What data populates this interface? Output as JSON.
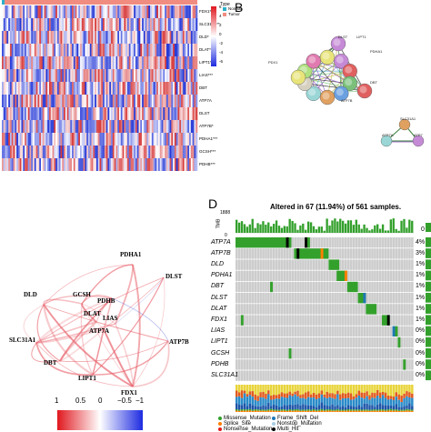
{
  "panelA": {
    "gene_labels": [
      "FDX1***",
      "SLC31A1**",
      "DLD*",
      "DLAT*",
      "LIPT1***",
      "LIAS***",
      "DBT",
      "ATP7A",
      "DLST",
      "ATP7B*",
      "PDHA1***",
      "GCSH***",
      "PDHB***"
    ],
    "legend_title": "Type",
    "legend_items": [
      {
        "label": "Normal",
        "color": "#2bb0c9"
      },
      {
        "label": "Tumor",
        "color": "#f08c80"
      }
    ],
    "colorbar_ticks": [
      "6",
      "4",
      "2",
      "0",
      "-2",
      "-4",
      "-6"
    ]
  },
  "panelB": {
    "letter": "B",
    "cluster_main": [
      "PDX1",
      "DLD",
      "LIPT1",
      "PDHA1",
      "DLST",
      "PDHB",
      "GCSH",
      "LIAS",
      "DBT",
      "DLAT",
      "FDX1"
    ],
    "cluster_small": [
      "SLC31A1",
      "ATP7A",
      "ATP7B"
    ],
    "node_labels": [
      "PDX1",
      "DLST",
      "LIPT1",
      "PDHA1",
      "DBT",
      "ATP7B",
      "SLC31A1",
      "ATP7A",
      "ATP7"
    ]
  },
  "panelC": {
    "genes": [
      "PDHA1",
      "GCSH",
      "DLST",
      "DLD",
      "PDHB",
      "DLAT",
      "LIAS",
      "SLC31A1",
      "ATP7A",
      "ATP7B",
      "DBT",
      "LIPT1",
      "FDX1"
    ],
    "scale_ticks": [
      "1",
      "0.5",
      "0",
      "−0.5",
      "−1"
    ]
  },
  "panelD": {
    "letter": "D",
    "title": "Altered in 67 (11.94%) of 561 samples.",
    "tmb_axis_label": "TMB",
    "tmb_max": "1888",
    "tmb_min": "0",
    "right_axis_label": "0",
    "genes": [
      {
        "name": "ATP7A",
        "pct": "4%"
      },
      {
        "name": "ATP7B",
        "pct": "3%"
      },
      {
        "name": "DLD",
        "pct": "1%"
      },
      {
        "name": "PDHA1",
        "pct": "1%"
      },
      {
        "name": "DBT",
        "pct": "1%"
      },
      {
        "name": "DLST",
        "pct": "1%"
      },
      {
        "name": "DLAT",
        "pct": "1%"
      },
      {
        "name": "FDX1",
        "pct": "1%"
      },
      {
        "name": "LIAS",
        "pct": "0%"
      },
      {
        "name": "LIPT1",
        "pct": "0%"
      },
      {
        "name": "GCSH",
        "pct": "0%"
      },
      {
        "name": "PDHB",
        "pct": "0%"
      },
      {
        "name": "SLC31A1",
        "pct": "0%"
      }
    ],
    "legend": [
      {
        "label": "Missense_Mutation",
        "color": "#33a02c"
      },
      {
        "label": "Frame_Shift_Del",
        "color": "#1f78b4"
      },
      {
        "label": "Splice_Site",
        "color": "#ff7f00"
      },
      {
        "label": "Nonstop_Mutation",
        "color": "#a6cee3"
      },
      {
        "label": "Nonsense_Mutation",
        "color": "#e31a1c"
      },
      {
        "label": "Multi_Hit",
        "color": "#000000"
      }
    ]
  }
}
